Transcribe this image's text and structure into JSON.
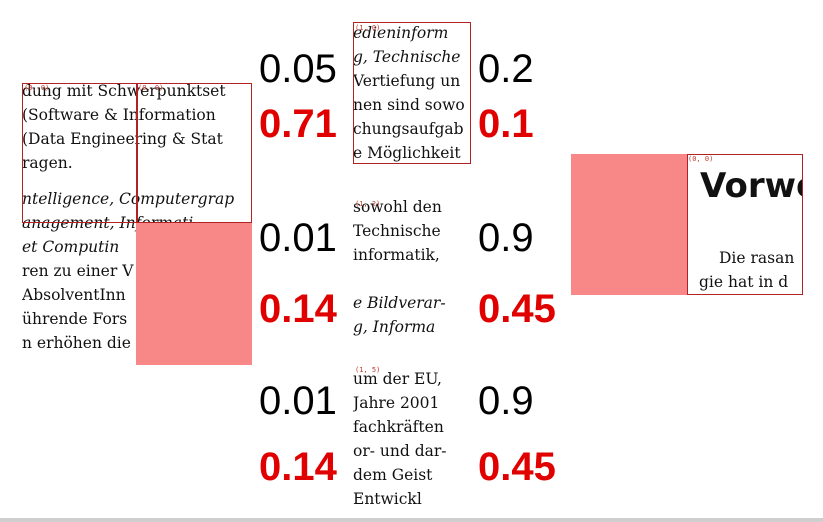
{
  "left_crop": {
    "tag": "(0, 0)",
    "lines": [
      "dung mit Schwerpunktset",
      " (Software & Information",
      "(Data Engineering & Stat",
      "ragen.",
      "ntelligence, Computergrap",
      "anagement, Informati",
      "et Computin",
      "ren zu einer V",
      "AbsolventInn",
      "ührende Fors",
      "n erhöhen die"
    ]
  },
  "top_crop": {
    "tag": "(1, 0)",
    "lines": [
      "edieninform",
      "g, Technische",
      "Vertiefung un",
      "nen sind sowo",
      "chungsaufgab",
      "e Möglichkeit"
    ]
  },
  "mid_crop": {
    "tag": "(1, 2)",
    "lines": [
      " sowohl den",
      " Technische",
      "informatik,",
      "",
      "e Bildverar-",
      "g, Informa"
    ]
  },
  "bottom_crop": {
    "tag": "(1, 5)",
    "lines": [
      "um der EU,",
      " Jahre 2001",
      "fachkräften",
      "or- und dar-",
      " dem Geist",
      "Entwickl"
    ]
  },
  "right_crop": {
    "tag": "(0, 0)",
    "title": "Vorwo",
    "lines": [
      "Die rasan",
      "gie hat in d"
    ]
  },
  "values": {
    "row1": {
      "left_top": "0.05",
      "left_bottom": "0.71",
      "right_top": "0.2",
      "right_bottom": "0.1"
    },
    "row2": {
      "left_top": "0.01",
      "left_bottom": "0.14",
      "right_top": "0.9",
      "right_bottom": "0.45"
    },
    "row3": {
      "left_top": "0.01",
      "left_bottom": "0.14",
      "right_top": "0.9",
      "right_bottom": "0.45"
    }
  },
  "colors": {
    "highlight": "#f88787",
    "frame": "#b22222",
    "score": "#e10000"
  }
}
